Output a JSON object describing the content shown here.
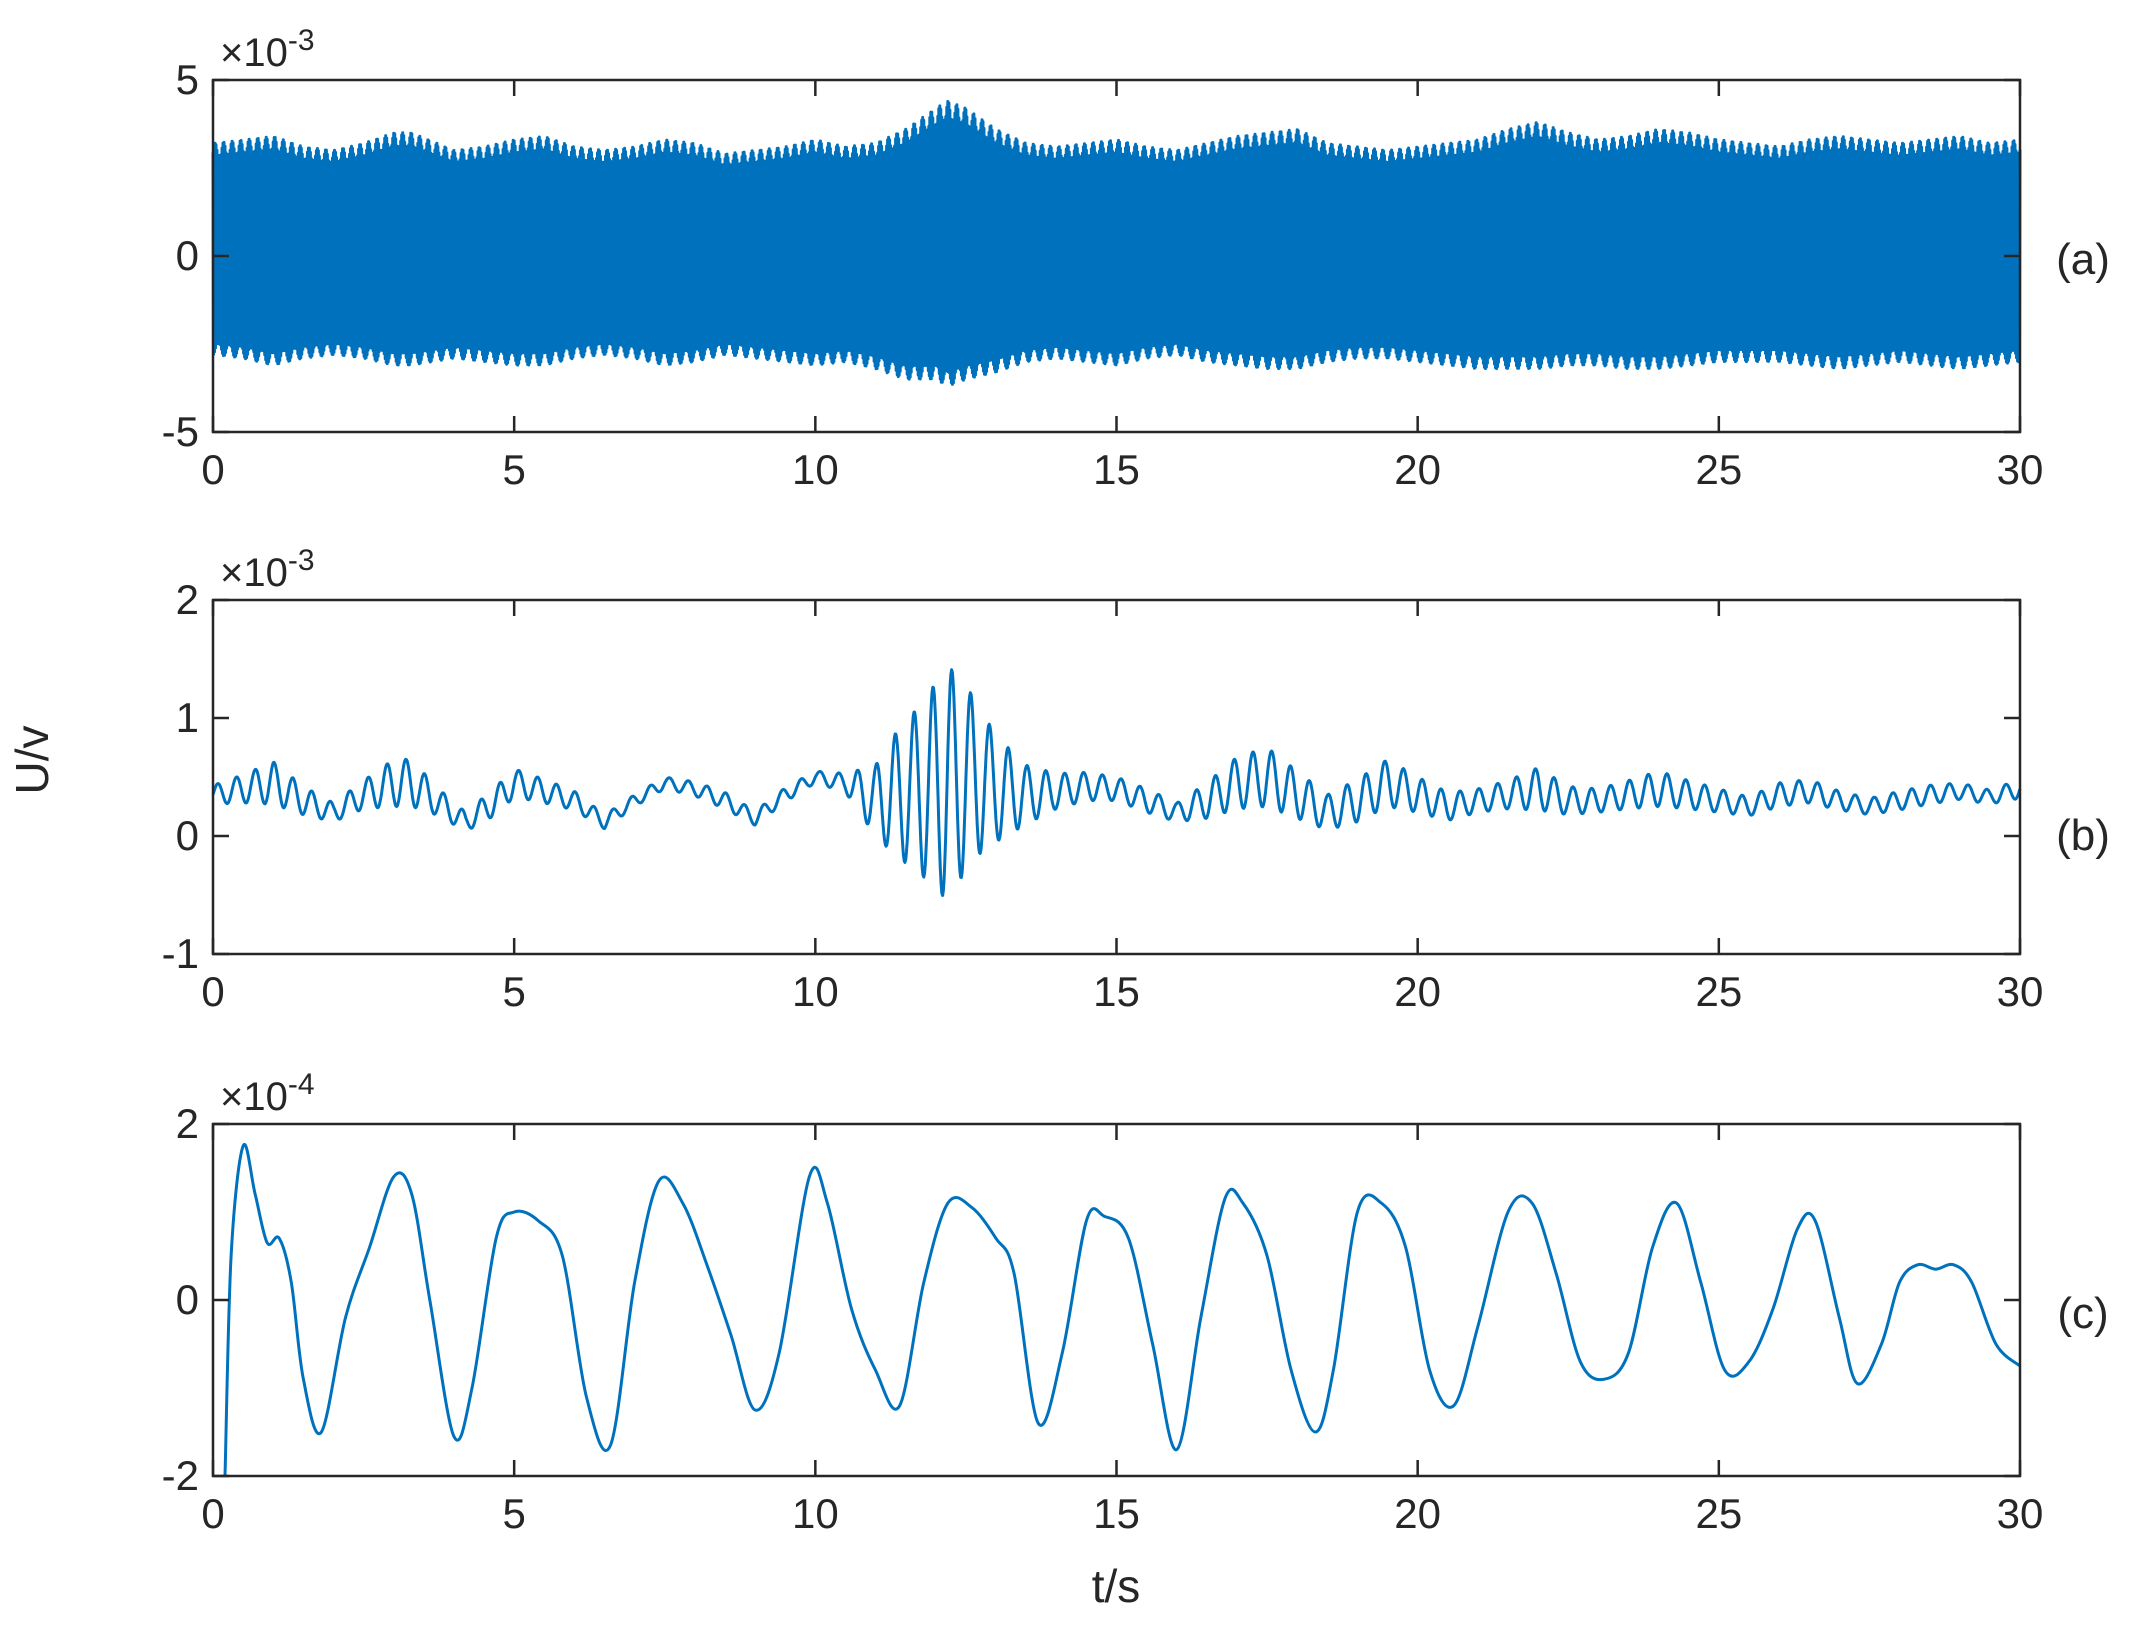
{
  "chart_data": [
    {
      "type": "line",
      "panel_label": "(a)",
      "exponent_prefix": "×10",
      "exponent_power": "-3",
      "xlim": [
        0,
        30
      ],
      "ylim": [
        -5,
        5
      ],
      "x_ticks": [
        "0",
        "5",
        "10",
        "15",
        "20",
        "25",
        "30"
      ],
      "y_ticks": [
        "5",
        "0",
        "-5"
      ],
      "color": "#0072BD",
      "series": [
        {
          "description": "dense high-frequency oscillation (scaled ×10^-3); envelope upper/lower bounds",
          "x": [
            0,
            0.5,
            1.0,
            1.5,
            2.0,
            2.5,
            3.0,
            3.3,
            4.0,
            4.5,
            5.0,
            5.5,
            6.0,
            6.5,
            7.0,
            7.5,
            8.0,
            8.5,
            9.0,
            9.5,
            10.0,
            10.5,
            11.0,
            11.5,
            12.0,
            12.2,
            12.5,
            13.0,
            13.5,
            14.0,
            14.5,
            15.0,
            15.5,
            16.0,
            16.5,
            17.0,
            17.5,
            18.0,
            18.5,
            19.0,
            19.5,
            20.0,
            20.5,
            21.0,
            21.5,
            22.0,
            22.5,
            23.0,
            23.5,
            24.0,
            24.5,
            25.0,
            25.5,
            26.0,
            26.5,
            27.0,
            27.5,
            28.0,
            28.5,
            29.0,
            29.5,
            30.0
          ],
          "upper": [
            3.2,
            3.3,
            3.4,
            3.1,
            3.0,
            3.2,
            3.5,
            3.5,
            3.0,
            3.1,
            3.3,
            3.4,
            3.1,
            3.0,
            3.1,
            3.3,
            3.2,
            2.9,
            3.0,
            3.1,
            3.3,
            3.1,
            3.2,
            3.6,
            4.2,
            4.4,
            4.2,
            3.6,
            3.2,
            3.1,
            3.2,
            3.3,
            3.1,
            3.0,
            3.2,
            3.4,
            3.5,
            3.6,
            3.2,
            3.1,
            3.0,
            3.1,
            3.2,
            3.3,
            3.6,
            3.8,
            3.5,
            3.3,
            3.4,
            3.6,
            3.5,
            3.3,
            3.2,
            3.1,
            3.3,
            3.4,
            3.3,
            3.2,
            3.3,
            3.4,
            3.2,
            3.3
          ],
          "lower": [
            -2.8,
            -2.9,
            -3.1,
            -2.9,
            -2.8,
            -2.9,
            -3.1,
            -3.1,
            -2.9,
            -3.0,
            -3.1,
            -3.1,
            -2.9,
            -2.8,
            -2.9,
            -3.1,
            -3.0,
            -2.8,
            -2.9,
            -3.0,
            -3.1,
            -3.0,
            -3.2,
            -3.5,
            -3.5,
            -3.7,
            -3.5,
            -3.3,
            -3.0,
            -2.9,
            -3.0,
            -3.1,
            -2.9,
            -2.8,
            -3.0,
            -3.1,
            -3.2,
            -3.2,
            -3.0,
            -2.9,
            -2.9,
            -3.0,
            -3.1,
            -3.2,
            -3.2,
            -3.2,
            -3.1,
            -3.1,
            -3.2,
            -3.2,
            -3.1,
            -3.0,
            -3.0,
            -3.0,
            -3.1,
            -3.2,
            -3.1,
            -3.0,
            -3.1,
            -3.2,
            -3.1,
            -3.0
          ]
        }
      ]
    },
    {
      "type": "line",
      "panel_label": "(b)",
      "exponent_prefix": "×10",
      "exponent_power": "-3",
      "xlim": [
        0,
        30
      ],
      "ylim": [
        -1,
        2
      ],
      "x_ticks": [
        "0",
        "5",
        "10",
        "15",
        "20",
        "25",
        "30"
      ],
      "y_ticks": [
        "2",
        "1",
        "0",
        "-1"
      ],
      "color": "#0072BD",
      "series": [
        {
          "description": "slowly varying baseline with superimposed oscillation (scaled ×10^-3); burst near t≈12",
          "x": [
            0,
            0.5,
            1.0,
            1.5,
            2.0,
            2.5,
            3.0,
            3.3,
            3.7,
            4.2,
            4.7,
            5.0,
            5.5,
            6.0,
            6.5,
            7.0,
            7.5,
            8.0,
            8.5,
            9.0,
            9.5,
            10.0,
            10.5,
            11.0,
            11.3,
            11.8,
            12.2,
            12.6,
            13.0,
            13.5,
            14.0,
            14.5,
            15.0,
            15.5,
            16.0,
            16.5,
            17.0,
            17.5,
            18.0,
            18.5,
            19.0,
            19.5,
            20.0,
            20.5,
            21.0,
            21.5,
            22.0,
            22.5,
            23.0,
            23.5,
            24.0,
            24.5,
            25.0,
            25.5,
            26.0,
            26.5,
            27.0,
            27.5,
            28.0,
            28.5,
            29.0,
            29.5,
            30.0
          ],
          "baseline": [
            0.35,
            0.4,
            0.45,
            0.3,
            0.2,
            0.35,
            0.45,
            0.45,
            0.3,
            0.12,
            0.3,
            0.45,
            0.38,
            0.3,
            0.12,
            0.3,
            0.45,
            0.4,
            0.3,
            0.15,
            0.35,
            0.5,
            0.45,
            0.3,
            0.35,
            0.4,
            0.45,
            0.5,
            0.4,
            0.35,
            0.38,
            0.42,
            0.4,
            0.3,
            0.2,
            0.3,
            0.45,
            0.5,
            0.35,
            0.2,
            0.3,
            0.45,
            0.35,
            0.25,
            0.3,
            0.35,
            0.4,
            0.3,
            0.3,
            0.35,
            0.4,
            0.35,
            0.3,
            0.25,
            0.35,
            0.38,
            0.3,
            0.25,
            0.3,
            0.35,
            0.38,
            0.33,
            0.4
          ],
          "amplitude": [
            0.08,
            0.12,
            0.18,
            0.12,
            0.08,
            0.12,
            0.2,
            0.2,
            0.12,
            0.08,
            0.12,
            0.12,
            0.1,
            0.08,
            0.06,
            0.05,
            0.05,
            0.06,
            0.07,
            0.06,
            0.06,
            0.05,
            0.08,
            0.3,
            0.5,
            0.75,
            1.0,
            0.7,
            0.45,
            0.25,
            0.15,
            0.12,
            0.1,
            0.1,
            0.08,
            0.15,
            0.22,
            0.25,
            0.2,
            0.15,
            0.18,
            0.2,
            0.15,
            0.12,
            0.1,
            0.12,
            0.18,
            0.12,
            0.1,
            0.12,
            0.15,
            0.12,
            0.1,
            0.08,
            0.1,
            0.1,
            0.08,
            0.07,
            0.08,
            0.08,
            0.07,
            0.06,
            0.08
          ]
        }
      ]
    },
    {
      "type": "line",
      "panel_label": "(c)",
      "exponent_prefix": "×10",
      "exponent_power": "-4",
      "xlim": [
        0,
        30
      ],
      "ylim": [
        -2,
        2
      ],
      "x_ticks": [
        "0",
        "5",
        "10",
        "15",
        "20",
        "25",
        "30"
      ],
      "y_ticks": [
        "2",
        "0",
        "-2"
      ],
      "xlabel": "t/s",
      "color": "#0072BD",
      "series": [
        {
          "description": "low-frequency oscillation (scaled ×10^-4)",
          "x": [
            0.2,
            0.3,
            0.5,
            0.7,
            0.9,
            1.1,
            1.3,
            1.5,
            1.8,
            2.2,
            2.6,
            3.0,
            3.3,
            3.6,
            4.0,
            4.3,
            4.7,
            5.0,
            5.4,
            5.8,
            6.2,
            6.6,
            7.0,
            7.4,
            7.8,
            8.2,
            8.6,
            9.0,
            9.4,
            9.9,
            10.2,
            10.6,
            11.0,
            11.4,
            11.8,
            12.2,
            12.6,
            13.0,
            13.3,
            13.7,
            14.1,
            14.5,
            14.8,
            15.2,
            15.6,
            16.0,
            16.4,
            16.8,
            17.1,
            17.5,
            17.9,
            18.3,
            18.6,
            19.0,
            19.4,
            19.8,
            20.2,
            20.6,
            21.0,
            21.5,
            21.9,
            22.3,
            22.7,
            23.1,
            23.5,
            23.9,
            24.3,
            24.7,
            25.1,
            25.5,
            25.9,
            26.3,
            26.6,
            27.0,
            27.3,
            27.7,
            28.0,
            28.3,
            28.6,
            28.9,
            29.2,
            29.6,
            30.0
          ],
          "y": [
            -2.0,
            0.5,
            1.75,
            1.2,
            0.65,
            0.7,
            0.2,
            -0.9,
            -1.5,
            -0.2,
            0.6,
            1.4,
            1.2,
            0.0,
            -1.55,
            -1.0,
            0.7,
            1.0,
            0.9,
            0.5,
            -1.1,
            -1.65,
            0.2,
            1.35,
            1.1,
            0.4,
            -0.4,
            -1.25,
            -0.6,
            1.4,
            1.1,
            -0.1,
            -0.8,
            -1.2,
            0.2,
            1.1,
            1.05,
            0.7,
            0.3,
            -1.4,
            -0.6,
            0.9,
            0.95,
            0.7,
            -0.5,
            -1.7,
            -0.2,
            1.15,
            1.1,
            0.5,
            -0.8,
            -1.5,
            -0.8,
            1.0,
            1.1,
            0.6,
            -0.8,
            -1.2,
            -0.3,
            1.0,
            1.1,
            0.3,
            -0.7,
            -0.9,
            -0.6,
            0.6,
            1.1,
            0.2,
            -0.8,
            -0.7,
            -0.1,
            0.8,
            0.9,
            -0.2,
            -0.95,
            -0.5,
            0.2,
            0.4,
            0.35,
            0.4,
            0.2,
            -0.5,
            -0.75
          ]
        }
      ]
    }
  ],
  "shared": {
    "ylabel": "U/v"
  }
}
